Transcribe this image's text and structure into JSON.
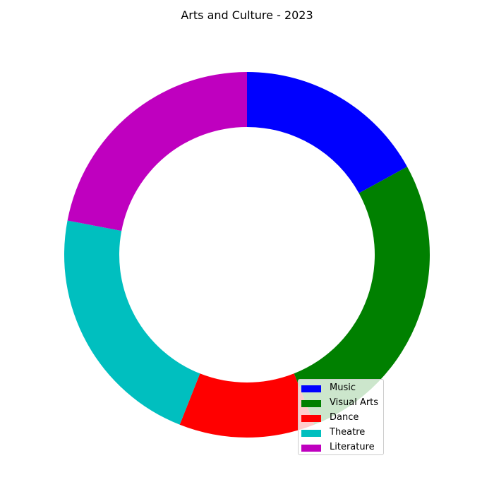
{
  "chart_data": {
    "type": "pie",
    "title": "Arts and Culture - 2023",
    "categories": [
      "Music",
      "Visual Arts",
      "Dance",
      "Theatre",
      "Literature"
    ],
    "values": [
      17,
      27,
      12,
      22,
      22
    ],
    "colors": [
      "#0000ff",
      "#008000",
      "#ff0000",
      "#00bfbf",
      "#bf00bf"
    ],
    "donut": true,
    "start_angle_deg": 90,
    "direction": "clockwise",
    "legend": {
      "position": "lower-right"
    }
  }
}
